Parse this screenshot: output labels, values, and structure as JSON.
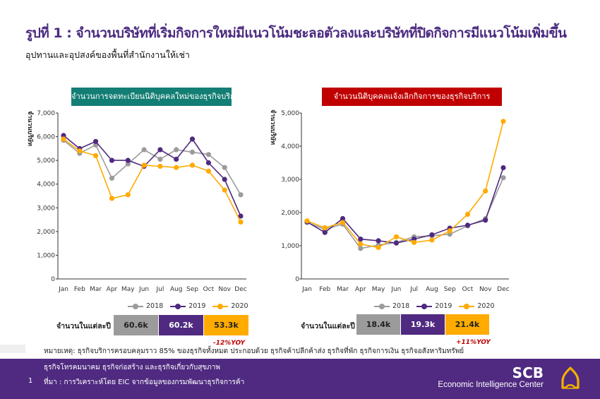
{
  "page": {
    "title": "รูปที่ 1 : จำนวนบริษัทที่เริ่มกิจการใหม่มีแนวโน้มชะลอตัวลงและบริษัทที่ปิดกิจการมีแนวโน้มเพิ่มขึ้น",
    "subtitle": "อุปทานและอุปสงค์ของพื้นที่สำนักงานให้เช่า",
    "note_line1": "หมายเหตุ: ธุรกิจบริการครอบคลุมราว 85% ของธุรกิจทั้งหมด ประกอบด้วย ธุรกิจค้าปลีกค้าส่ง ธุรกิจที่พัก ธุรกิจการเงิน ธุรกิจอสังหาริมทรัพย์",
    "note_line2": "ธุรกิจโทรคมนาคม ธุรกิจก่อสร้าง และธุรกิจเกี่ยวกับสุขภาพ",
    "source": "ที่มา : การวิเคราะห์โดย EIC จากข้อมูลของกรมพัฒนาธุรกิจการค้า",
    "page_number": "1",
    "logo": {
      "brand": "SCB",
      "name": "Economic Intelligence Center",
      "icon": "scb-temple-icon"
    }
  },
  "colors": {
    "2018": "#9b9b9b",
    "2019": "#4f2a80",
    "2020": "#ffab00",
    "header_left": "#137e74",
    "header_right": "#c00000",
    "footer": "#4f2a80",
    "yoy": "#c00000"
  },
  "chart_data": [
    {
      "type": "line",
      "title": "จำนวนการจดทะเบียนนิติบุคคลใหม่ของธุรกิจบริการ",
      "ylabel": "จำนวนบริษัท",
      "xlabel": "",
      "ylim": [
        0,
        7000
      ],
      "yticks": [
        "0",
        "1,000",
        "2,000",
        "3,000",
        "4,000",
        "5,000",
        "6,000",
        "7,000"
      ],
      "ytick_values": [
        0,
        1000,
        2000,
        3000,
        4000,
        5000,
        6000,
        7000
      ],
      "categories": [
        "Jan",
        "Feb",
        "Mar",
        "Apr",
        "May",
        "Jun",
        "Jul",
        "Aug",
        "Sep",
        "Oct",
        "Nov",
        "Dec"
      ],
      "legend_position": "bottom",
      "series": [
        {
          "name": "2018",
          "values": [
            5850,
            5300,
            5650,
            4250,
            4850,
            5450,
            5050,
            5450,
            5350,
            5250,
            4700,
            3550
          ]
        },
        {
          "name": "2019",
          "values": [
            6050,
            5500,
            5800,
            5000,
            5000,
            4750,
            5450,
            5050,
            5900,
            4900,
            4200,
            2650
          ]
        },
        {
          "name": "2020",
          "values": [
            5900,
            5400,
            5200,
            3400,
            3550,
            4800,
            4750,
            4700,
            4800,
            4550,
            3750,
            2400
          ]
        }
      ],
      "annual_label": "จำนวนในแต่ละปี",
      "annual_totals": [
        "60.6k",
        "60.2k",
        "53.3k"
      ],
      "yoy": "-12%YOY"
    },
    {
      "type": "line",
      "title": "จำนวนนิติบุคคลแจ้งเลิกกิจการของธุรกิจบริการ",
      "ylabel": "จำนวนบริษัท",
      "xlabel": "",
      "ylim": [
        0,
        5000
      ],
      "yticks": [
        "0",
        "1,000",
        "2,000",
        "3,000",
        "4,000",
        "5,000"
      ],
      "ytick_values": [
        0,
        1000,
        2000,
        3000,
        4000,
        5000
      ],
      "categories": [
        "Jan",
        "Feb",
        "Mar",
        "Apr",
        "May",
        "Jun",
        "Jul",
        "Aug",
        "Sep",
        "Oct",
        "Nov",
        "Dec"
      ],
      "legend_position": "bottom",
      "series": [
        {
          "name": "2018",
          "values": [
            1700,
            1500,
            1650,
            920,
            1020,
            1100,
            1270,
            1300,
            1350,
            1600,
            1820,
            3050
          ]
        },
        {
          "name": "2019",
          "values": [
            1720,
            1400,
            1820,
            1200,
            1150,
            1080,
            1200,
            1330,
            1530,
            1620,
            1770,
            3350
          ]
        },
        {
          "name": "2020",
          "values": [
            1750,
            1540,
            1700,
            1050,
            950,
            1270,
            1100,
            1170,
            1450,
            1950,
            2650,
            4750
          ]
        }
      ],
      "annual_label": "จำนวนในแต่ละปี",
      "annual_totals": [
        "18.4k",
        "19.3k",
        "21.4k"
      ],
      "yoy": "+11%YOY"
    }
  ]
}
